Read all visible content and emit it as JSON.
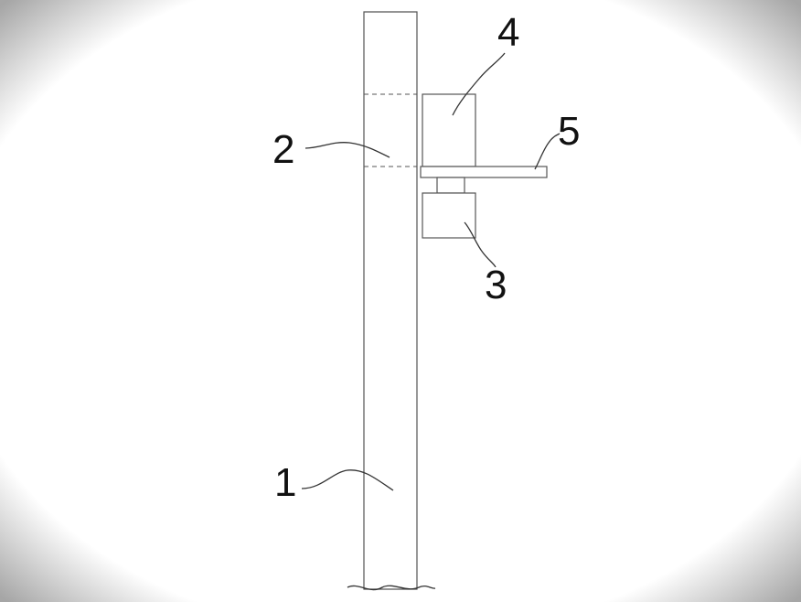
{
  "diagram": {
    "callouts": [
      {
        "id": "1",
        "label": "1"
      },
      {
        "id": "2",
        "label": "2"
      },
      {
        "id": "3",
        "label": "3"
      },
      {
        "id": "4",
        "label": "4"
      },
      {
        "id": "5",
        "label": "5"
      }
    ],
    "colors": {
      "line": "#555555",
      "text": "#111111",
      "background": "#ffffff"
    }
  }
}
